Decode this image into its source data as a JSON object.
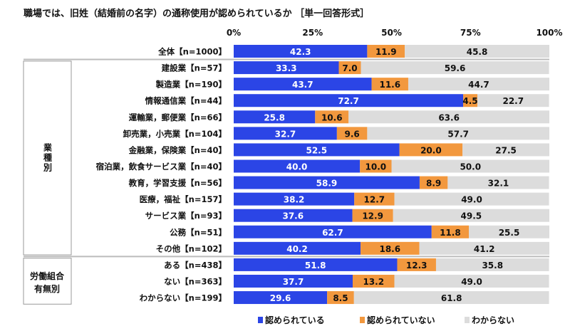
{
  "chart_data": {
    "type": "bar",
    "orientation": "horizontal",
    "stacked": true,
    "title": "職場では、旧姓（結婚前の名字）の通称使用が認められているか ［単一回答形式］",
    "xlim": [
      0,
      100
    ],
    "xticks": [
      "0%",
      "25%",
      "50%",
      "75%",
      "100%"
    ],
    "legend_position": "bottom",
    "groups": [
      {
        "label": "",
        "rows": [
          0
        ]
      },
      {
        "label": "業種別",
        "rows": [
          1,
          2,
          3,
          4,
          5,
          6,
          7,
          8,
          9,
          10,
          11,
          12
        ]
      },
      {
        "label": "労働組合有無別",
        "rows": [
          13,
          14,
          15
        ]
      }
    ],
    "categories": [
      "全体【n=1000】",
      "建設業【n=57】",
      "製造業【n=190】",
      "情報通信業【n=44】",
      "運輸業，郵便業【n=66】",
      "卸売業，小売業【n=104】",
      "金融業，保険業【n=40】",
      "宿泊業，飲食サービス業【n=40】",
      "教育，学習支援【n=56】",
      "医療，福祉【n=157】",
      "サービス業【n=93】",
      "公務【n=51】",
      "その他【n=102】",
      "ある【n=438】",
      "ない【n=363】",
      "わからない【n=199】"
    ],
    "series": [
      {
        "name": "認められている",
        "color": "#2b45e6",
        "values": [
          42.3,
          33.3,
          43.7,
          72.7,
          25.8,
          32.7,
          52.5,
          40.0,
          58.9,
          38.2,
          37.6,
          62.7,
          40.2,
          51.8,
          37.7,
          29.6
        ]
      },
      {
        "name": "認められていない",
        "color": "#f2983e",
        "values": [
          11.9,
          7.0,
          11.6,
          4.5,
          10.6,
          9.6,
          20.0,
          10.0,
          8.9,
          12.7,
          12.9,
          11.8,
          18.6,
          12.3,
          13.2,
          8.5
        ]
      },
      {
        "name": "わからない",
        "color": "#dcdcdc",
        "values": [
          45.8,
          59.6,
          44.7,
          22.7,
          63.6,
          57.7,
          27.5,
          50.0,
          32.1,
          49.0,
          49.5,
          25.5,
          41.2,
          35.8,
          49.0,
          61.8
        ]
      }
    ]
  }
}
